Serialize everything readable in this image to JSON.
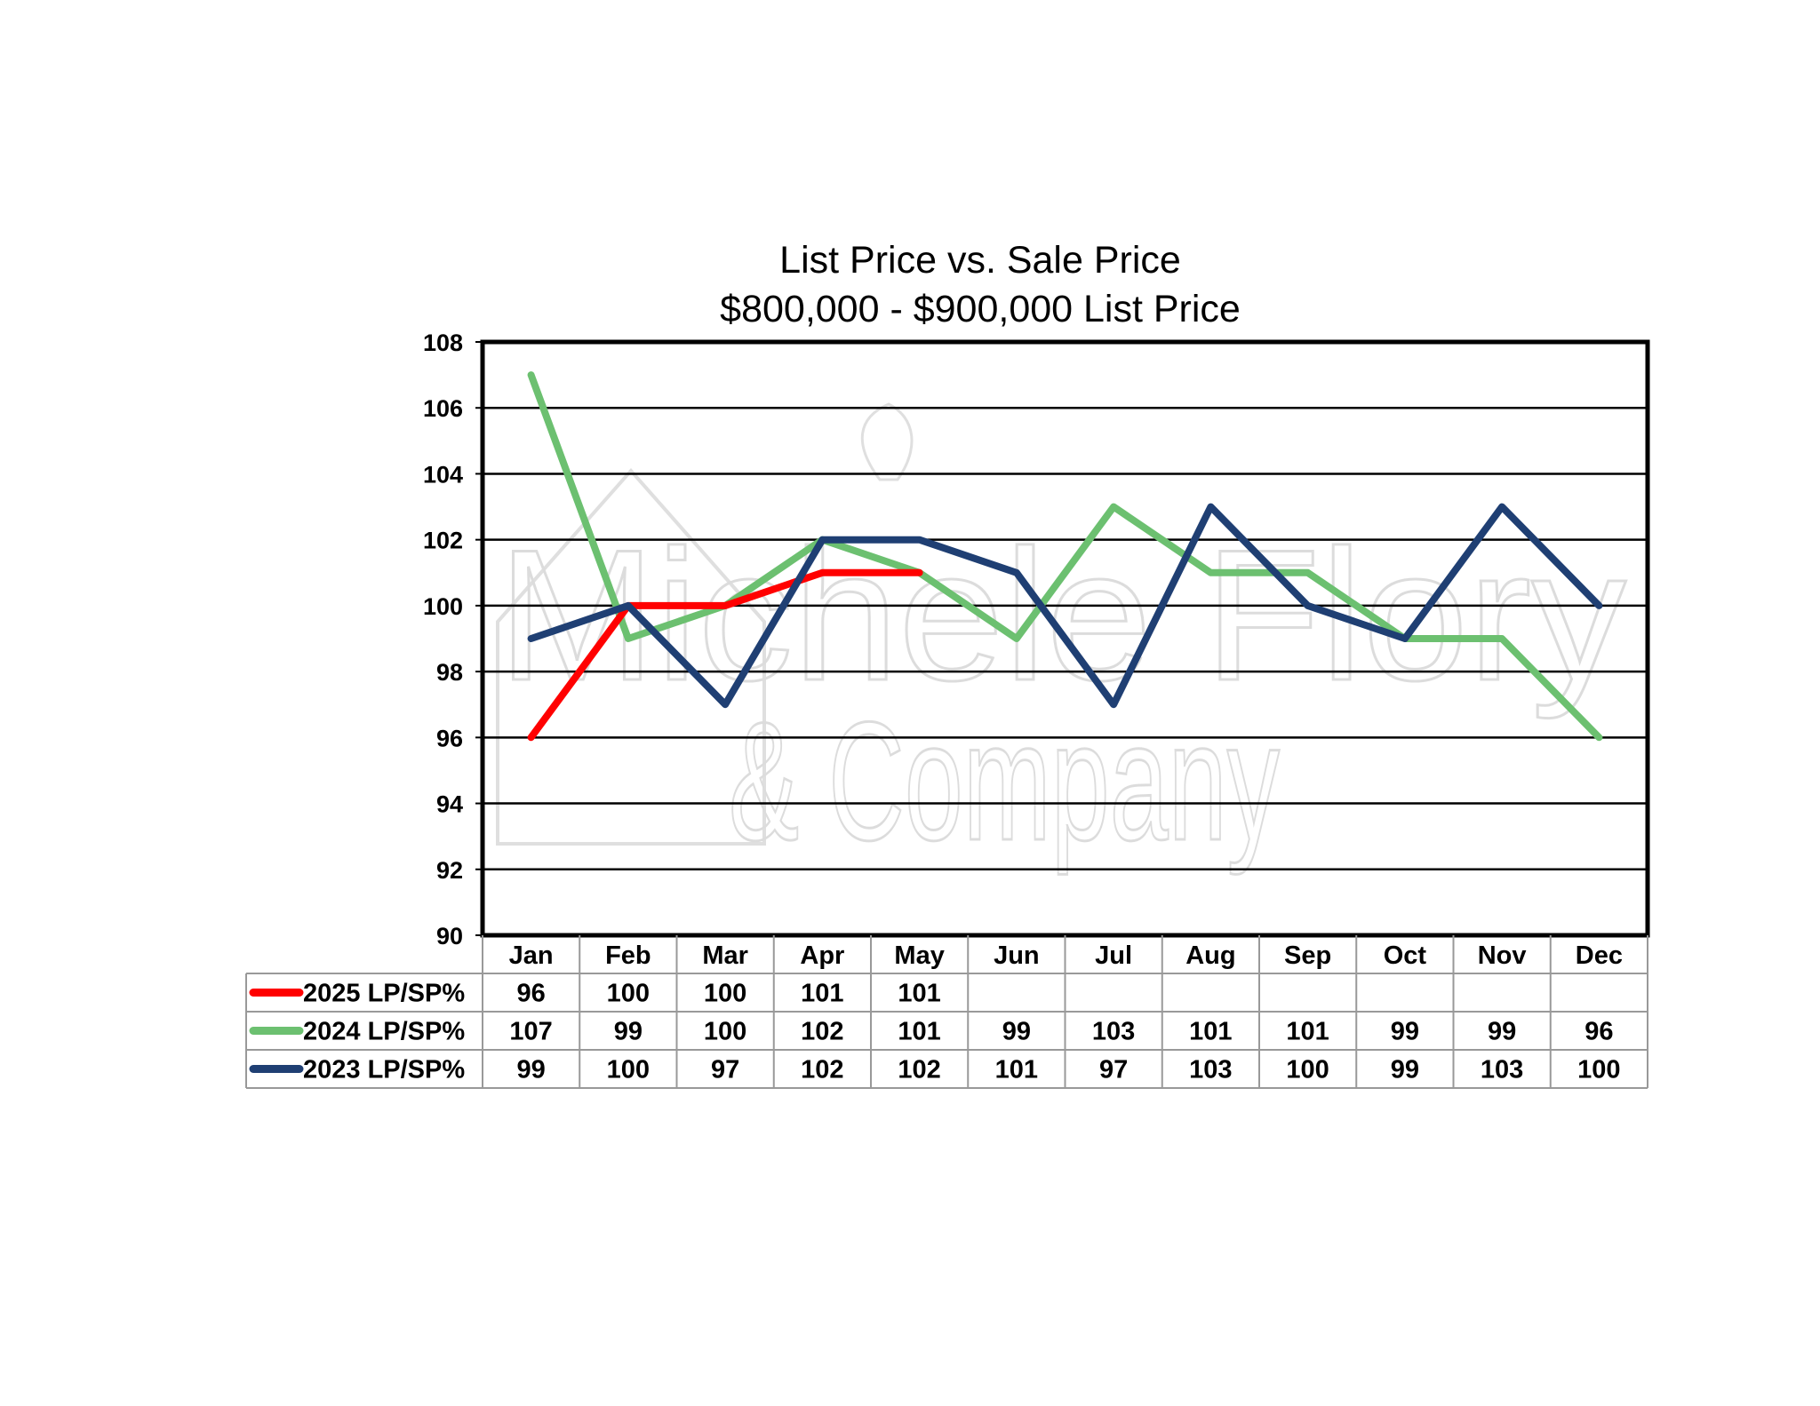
{
  "chart_data": {
    "type": "line",
    "title": "List Price vs. Sale Price",
    "subtitle": "$800,000 - $900,000 List Price",
    "xlabel": "",
    "ylabel": "",
    "ylim": [
      90,
      108
    ],
    "yticks": [
      90,
      92,
      94,
      96,
      98,
      100,
      102,
      104,
      106,
      108
    ],
    "grid": true,
    "legend": "data-table-left",
    "categories": [
      "Jan",
      "Feb",
      "Mar",
      "Apr",
      "May",
      "Jun",
      "Jul",
      "Aug",
      "Sep",
      "Oct",
      "Nov",
      "Dec"
    ],
    "series": [
      {
        "name": "2025 LP/SP%",
        "color": "#ff0000",
        "values": [
          96,
          100,
          100,
          101,
          101,
          null,
          null,
          null,
          null,
          null,
          null,
          null
        ]
      },
      {
        "name": "2024 LP/SP%",
        "color": "#6cc070",
        "values": [
          107,
          99,
          100,
          102,
          101,
          99,
          103,
          101,
          101,
          99,
          99,
          96
        ]
      },
      {
        "name": "2023 LP/SP%",
        "color": "#1f3f73",
        "values": [
          99,
          100,
          97,
          102,
          102,
          101,
          97,
          103,
          100,
          99,
          103,
          100
        ]
      }
    ]
  },
  "watermark": {
    "line1": "Michele Flory",
    "line2": "& Company",
    "color": "#d9d9d9"
  }
}
